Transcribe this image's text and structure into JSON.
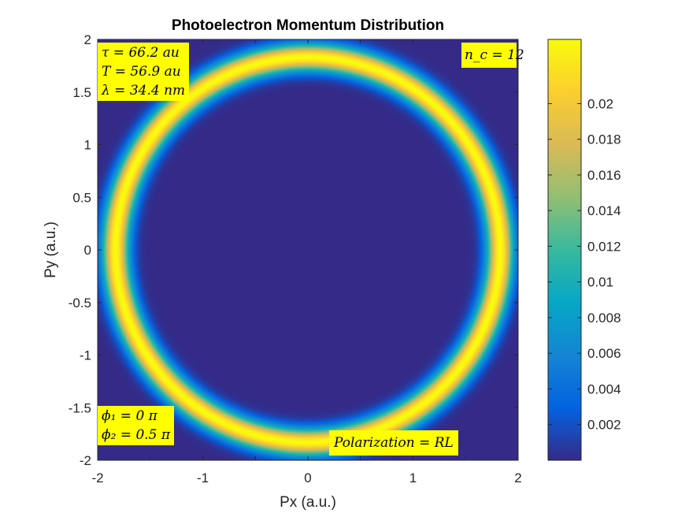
{
  "chart_data": {
    "type": "heatmap",
    "title": "Photoelectron Momentum Distribution",
    "xlabel": "Px (a.u.)",
    "ylabel": "Py (a.u.)",
    "xlim": [
      -2,
      2
    ],
    "ylim": [
      -2,
      2
    ],
    "xticks": [
      "-2",
      "-1.5",
      "-1",
      "-0.5",
      "0",
      "0.5",
      "1",
      "1.5",
      "2"
    ],
    "xtick_values": [
      -2,
      -1.5,
      -1,
      -0.5,
      0,
      0.5,
      1,
      1.5,
      2
    ],
    "xticks_shown": [
      "-2",
      "-1",
      "0",
      "1",
      "2"
    ],
    "xtick_shown_values": [
      -2,
      -1,
      0,
      1,
      2
    ],
    "yticks": [
      "-2",
      "-1.5",
      "-1",
      "-0.5",
      "0",
      "0.5",
      "1",
      "1.5",
      "2"
    ],
    "ytick_values": [
      -2,
      -1.5,
      -1,
      -0.5,
      0,
      0.5,
      1,
      1.5,
      2
    ],
    "colormap": "parula",
    "colorbar": {
      "range": [
        0,
        0.0236
      ],
      "ticks": [
        "0.002",
        "0.004",
        "0.006",
        "0.008",
        "0.01",
        "0.012",
        "0.014",
        "0.016",
        "0.018",
        "0.02"
      ],
      "tick_values": [
        0.002,
        0.004,
        0.006,
        0.008,
        0.01,
        0.012,
        0.014,
        0.016,
        0.018,
        0.02
      ]
    },
    "ring": {
      "radius": 1.83,
      "width": 0.09,
      "peak": 0.0236
    },
    "annotations": {
      "params": [
        "τ = 66.2 au",
        "T = 56.9 au",
        "λ = 34.4 nm"
      ],
      "nc": "n_c = 12",
      "phases": [
        "ϕ₁ = 0 π",
        "ϕ₂ = 0.5 π"
      ],
      "polarization": "Polarization = RL"
    },
    "colors": {
      "background": "#352A87",
      "annotation_bg": "#FFFF00"
    }
  }
}
